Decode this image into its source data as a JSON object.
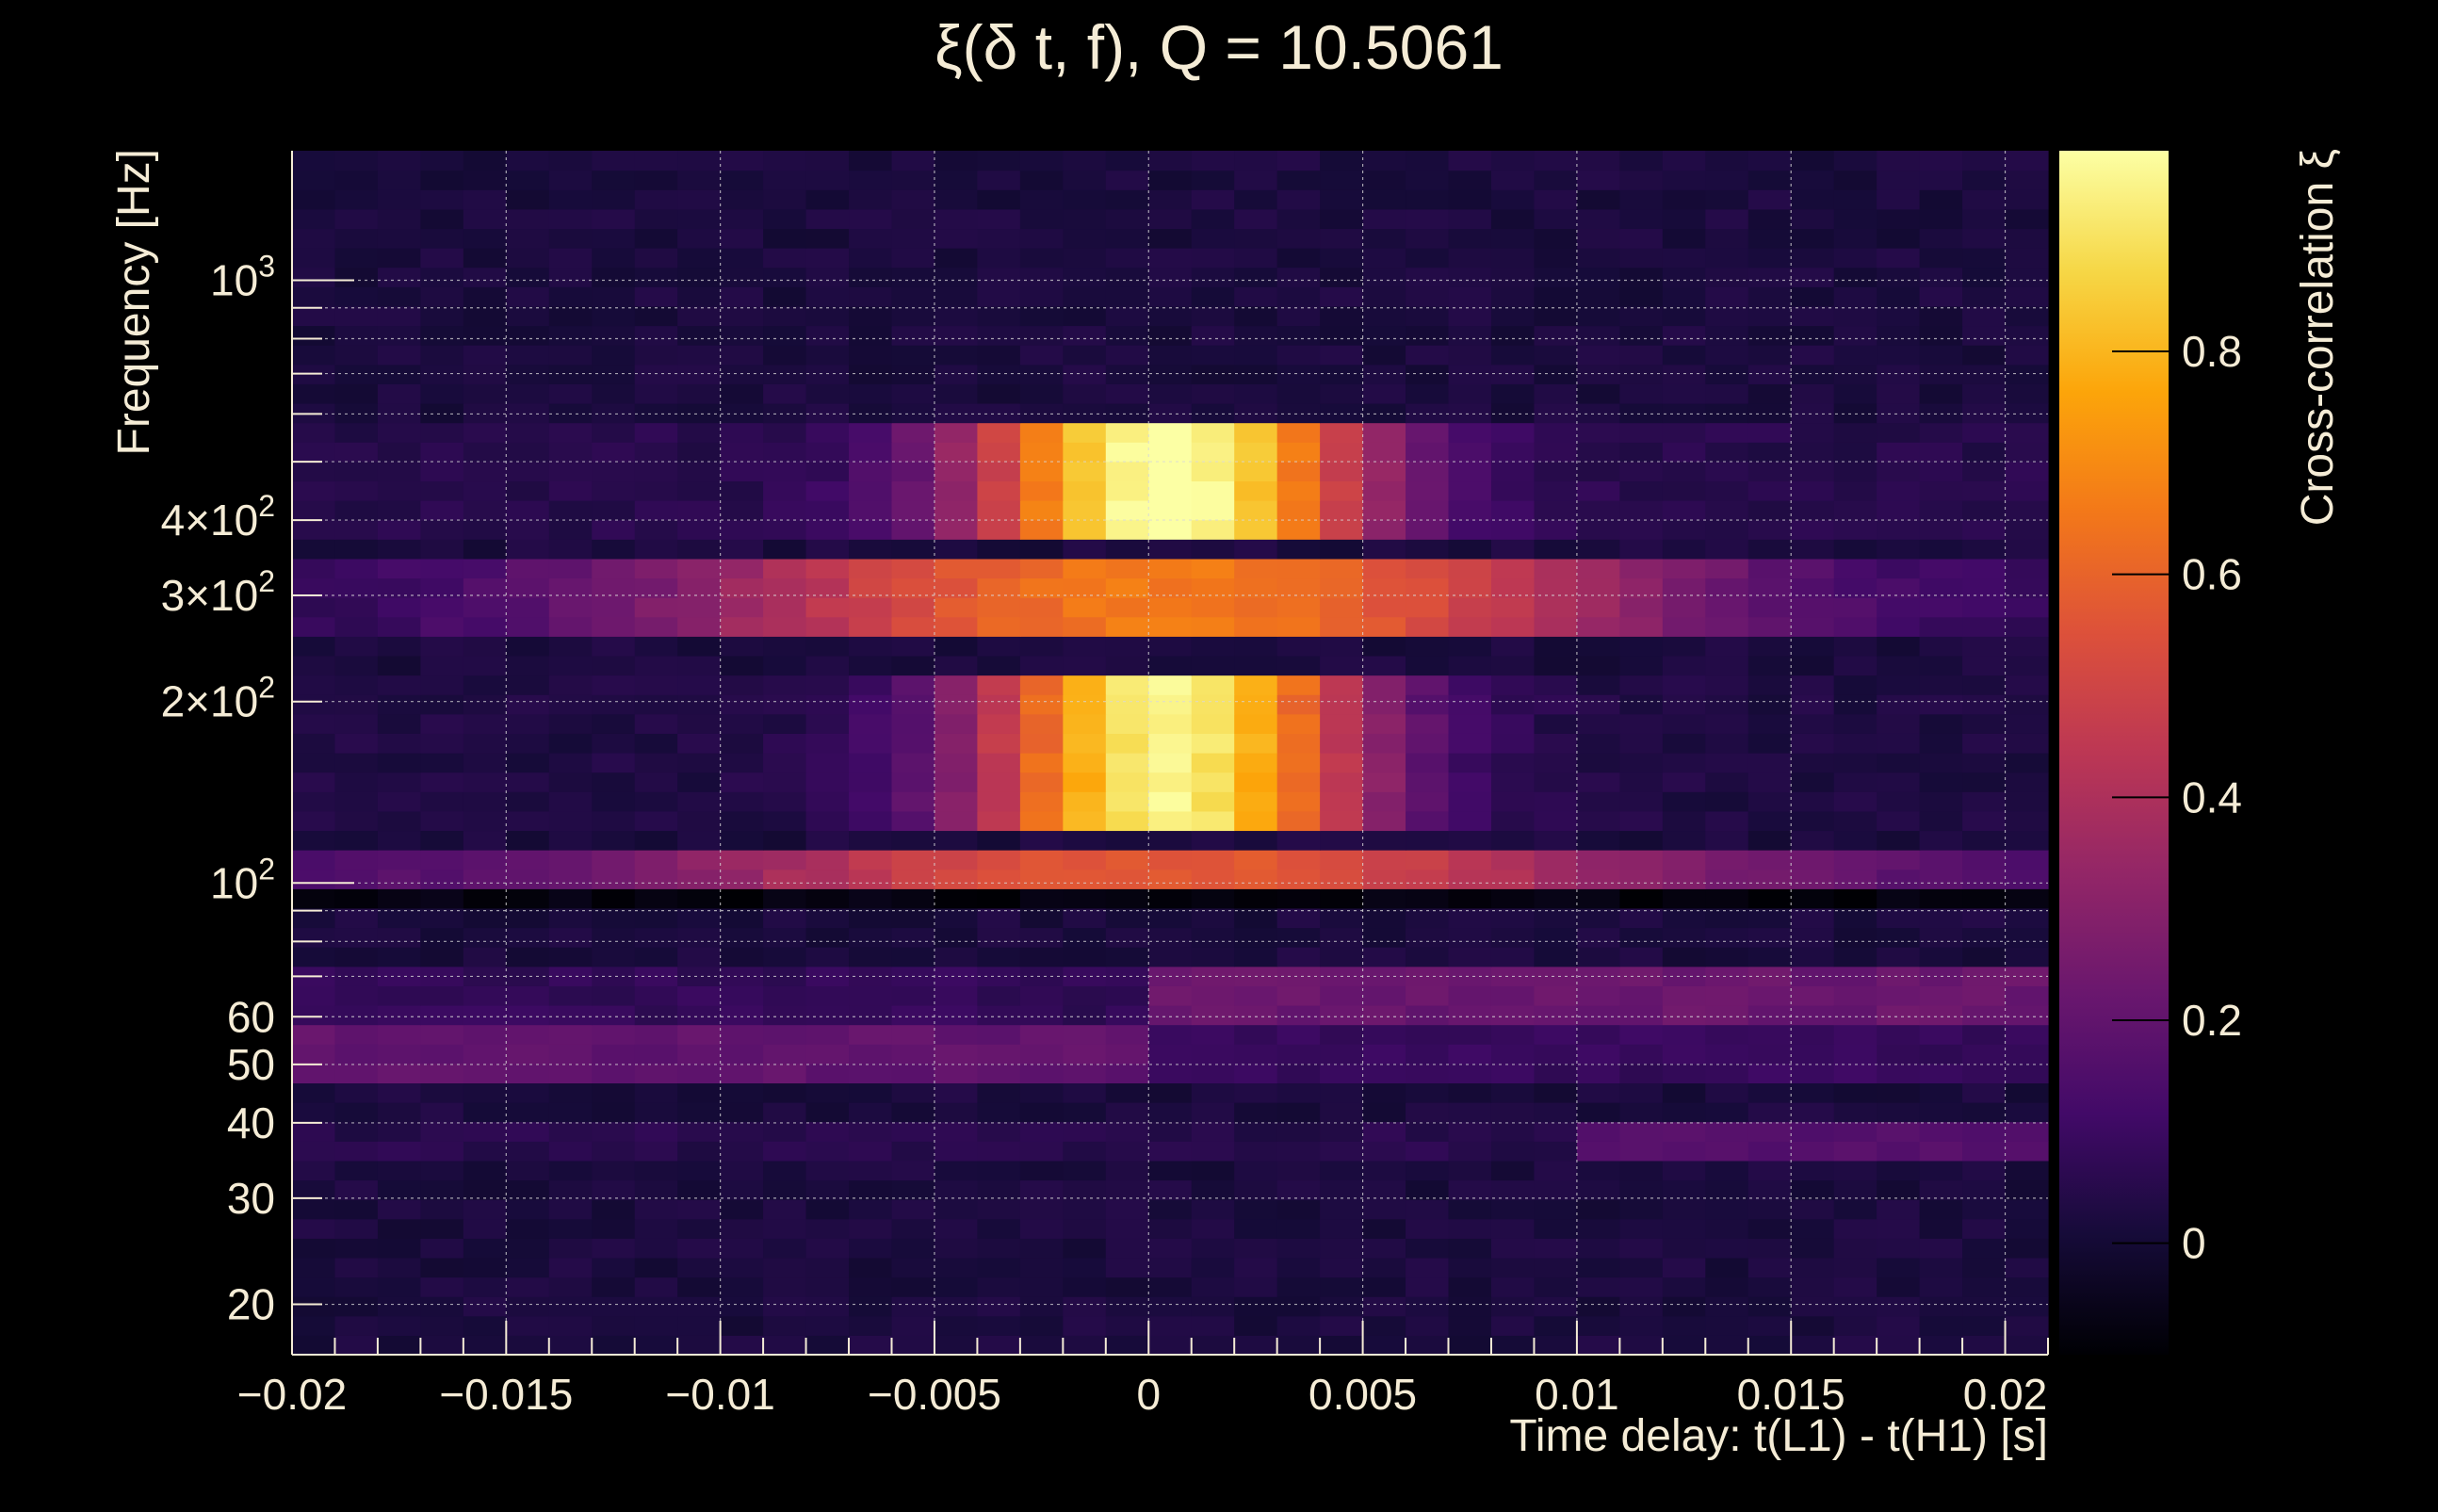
{
  "chart_data": {
    "type": "heatmap",
    "title": "ξ(δ t, f), Q = 10.5061",
    "xlabel": "Time delay: t(L1) - t(H1) [s]",
    "ylabel": "Frequency [Hz]",
    "colorbar_label": "Cross-correlation ξ",
    "xlim": [
      -0.02,
      0.021
    ],
    "ylim": [
      16.5,
      1640
    ],
    "y_scale": "log",
    "clim": [
      -0.1,
      0.98
    ],
    "colormap": "inferno",
    "grid": true,
    "x_ticks": [
      {
        "value": -0.02,
        "label": "−0.02"
      },
      {
        "value": -0.015,
        "label": "−0.015"
      },
      {
        "value": -0.01,
        "label": "−0.01"
      },
      {
        "value": -0.005,
        "label": "−0.005"
      },
      {
        "value": 0,
        "label": "0"
      },
      {
        "value": 0.005,
        "label": "0.005"
      },
      {
        "value": 0.01,
        "label": "0.01"
      },
      {
        "value": 0.015,
        "label": "0.015"
      },
      {
        "value": 0.02,
        "label": "0.02"
      }
    ],
    "y_ticks": [
      {
        "value": 20,
        "label": "20"
      },
      {
        "value": 30,
        "label": "30"
      },
      {
        "value": 40,
        "label": "40"
      },
      {
        "value": 50,
        "label": "50"
      },
      {
        "value": 60,
        "label": "60"
      },
      {
        "value": 100,
        "label": "10",
        "sup": "2"
      },
      {
        "value": 200,
        "label": "2×10",
        "sup": "2"
      },
      {
        "value": 300,
        "label": "3×10",
        "sup": "2"
      },
      {
        "value": 400,
        "label": "4×10",
        "sup": "2"
      },
      {
        "value": 1000,
        "label": "10",
        "sup": "3"
      }
    ],
    "colorbar_ticks": [
      {
        "value": 0,
        "label": "0"
      },
      {
        "value": 0.2,
        "label": "0.2"
      },
      {
        "value": 0.4,
        "label": "0.4"
      },
      {
        "value": 0.6,
        "label": "0.6"
      },
      {
        "value": 0.8,
        "label": "0.8"
      }
    ],
    "x_bins": 41,
    "x_bin_width": 0.001,
    "features": {
      "peak_time": 0.0005,
      "upper_lobe": {
        "freq_low": 370,
        "freq_high": 560,
        "amp": 0.95,
        "time_width": 0.0045
      },
      "line_300hz": {
        "freq_low": 265,
        "freq_high": 345,
        "amp": 0.62,
        "time_width": 0.012
      },
      "lower_lobe": {
        "freq_low": 120,
        "freq_high": 225,
        "amp": 0.92,
        "time_width": 0.0045
      },
      "band_100hz": {
        "freq_low": 100,
        "freq_high": 112,
        "amp": 0.45,
        "time_width": 0.012
      },
      "band_65hz": {
        "freq_low": 60,
        "freq_high": 72,
        "amp": 0.22
      },
      "band_50hz": {
        "freq_low": 46,
        "freq_high": 58,
        "amp": 0.2
      },
      "band_38hz": {
        "freq_low": 35,
        "freq_high": 40,
        "amp": 0.1
      },
      "background": 0.02
    }
  }
}
